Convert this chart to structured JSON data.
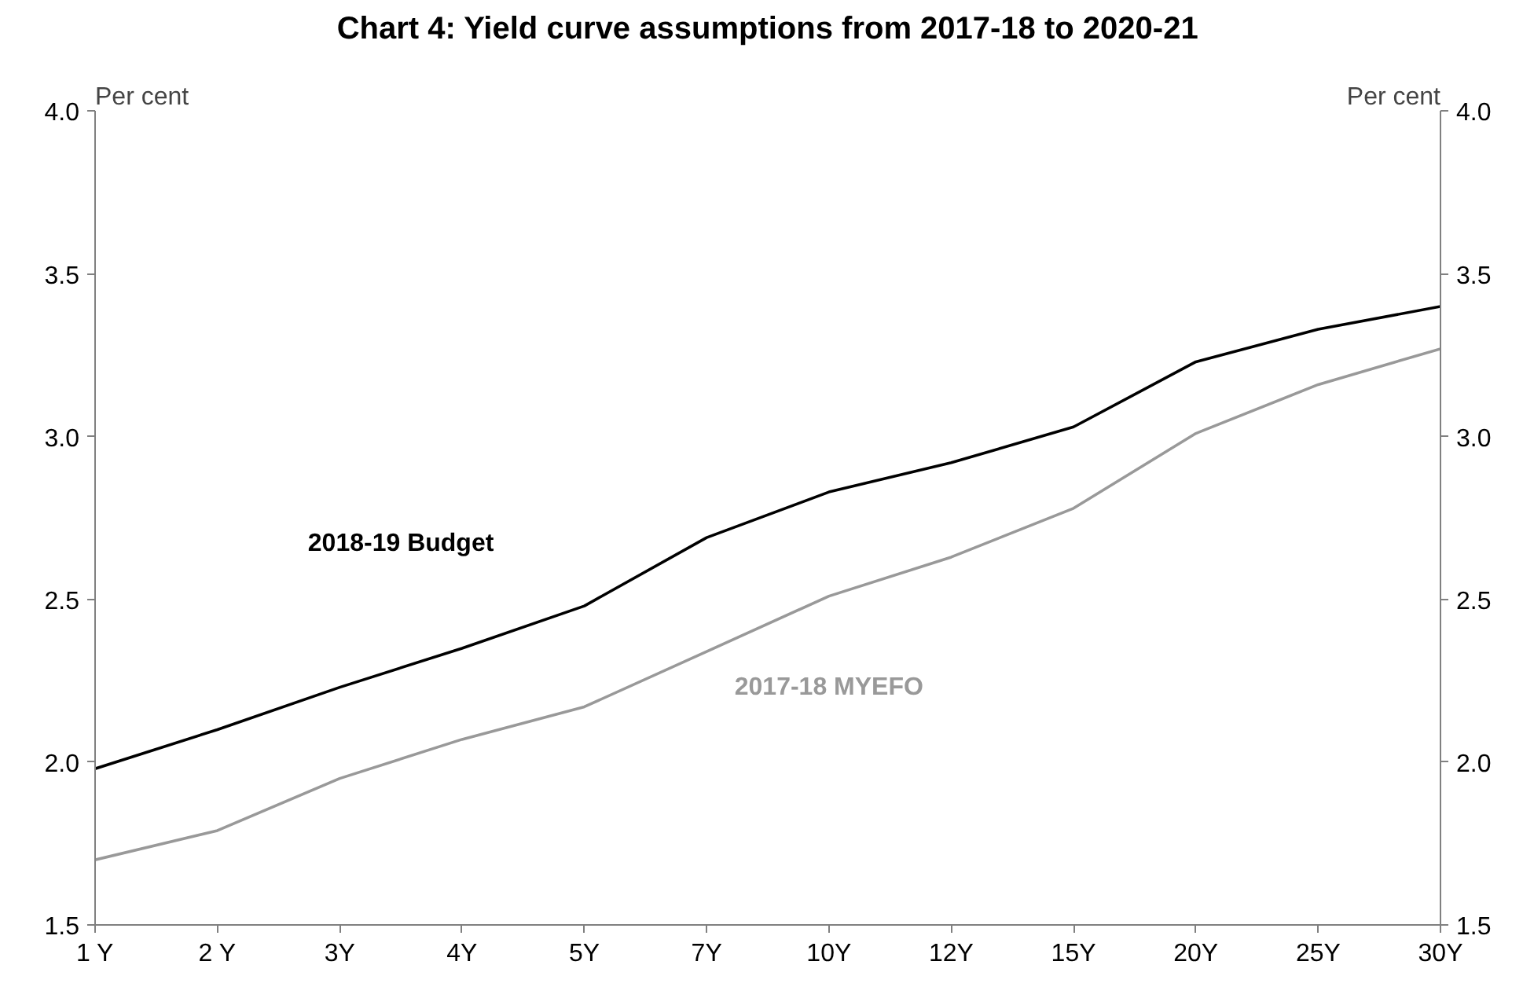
{
  "chart_data": {
    "type": "line",
    "title": "Chart 4: Yield curve assumptions from 2017-18 to 2020-21",
    "categories": [
      "1 Y",
      "2 Y",
      "3Y",
      "4Y",
      "5Y",
      "7Y",
      "10Y",
      "12Y",
      "15Y",
      "20Y",
      "25Y",
      "30Y"
    ],
    "series": [
      {
        "name": "2018-19 Budget",
        "color": "#000000",
        "values": [
          1.98,
          2.1,
          2.23,
          2.35,
          2.48,
          2.69,
          2.83,
          2.92,
          3.03,
          3.23,
          3.33,
          3.4
        ]
      },
      {
        "name": "2017-18 MYEFO",
        "color": "#999999",
        "values": [
          1.7,
          1.79,
          1.95,
          2.07,
          2.17,
          2.34,
          2.51,
          2.63,
          2.78,
          3.01,
          3.16,
          3.27
        ]
      }
    ],
    "ylabel": "Per cent",
    "y2label": "Per cent",
    "ylim": [
      1.5,
      4.0
    ],
    "yticks": [
      1.5,
      {
        "value": 2,
        "label": "2.0"
      },
      2.5,
      {
        "value": 3,
        "label": "3.0"
      },
      3.5,
      {
        "value": 4,
        "label": "4.0"
      }
    ],
    "y2lim": [
      1.5,
      4.0
    ],
    "y2ticks": [
      1.5,
      {
        "value": 2,
        "label": "2.0"
      },
      2.5,
      {
        "value": 3,
        "label": "3.0"
      },
      3.5,
      {
        "value": 4,
        "label": "4.0"
      }
    ],
    "grid": false,
    "marker": "none",
    "line_style": "solid"
  }
}
